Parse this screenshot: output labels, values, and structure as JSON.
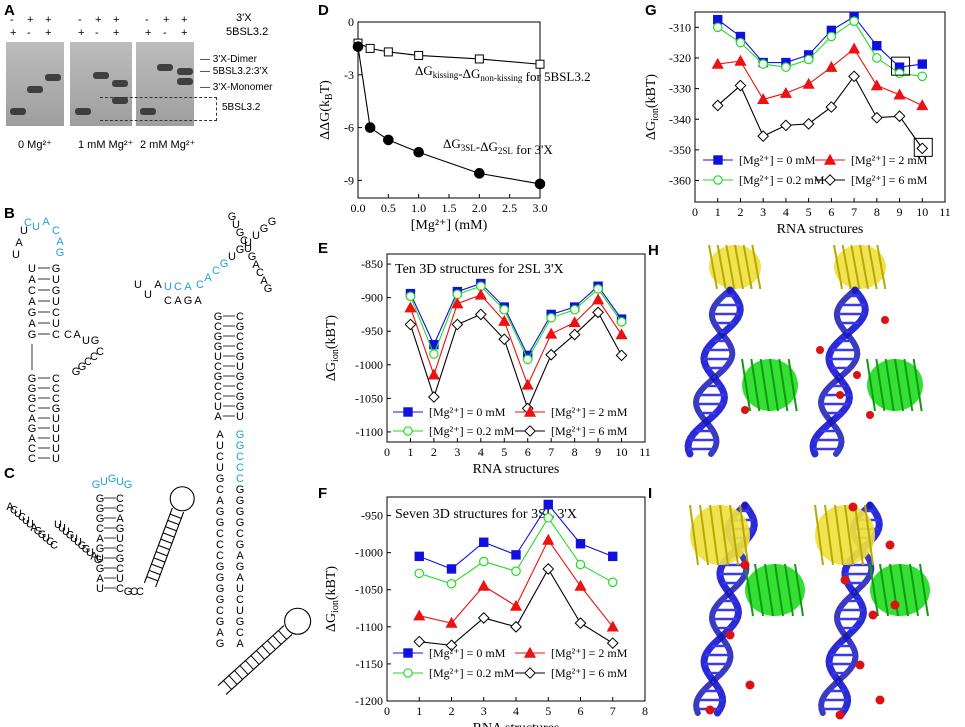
{
  "panels": {
    "A": {
      "label": "A",
      "lanes_3x": [
        "-",
        "+",
        "+",
        "-",
        "+",
        "+",
        "-",
        "+",
        "+"
      ],
      "lanes_5bsl": [
        "+",
        "-",
        "+",
        "+",
        "-",
        "+",
        "+",
        "-",
        "+"
      ],
      "row_3x": "3'X",
      "row_5bsl": "5BSL3.2",
      "bands": [
        "3'X-Dimer",
        "5BSL3.2:3'X",
        "3'X-Monomer",
        "5BSL3.2"
      ],
      "conditions": [
        "0 Mg²⁺",
        "1 mM Mg²⁺",
        "2 mM Mg²⁺"
      ]
    },
    "B": {
      "label": "B"
    },
    "C": {
      "label": "C"
    },
    "H": {
      "label": "H"
    },
    "I": {
      "label": "I"
    }
  },
  "chart_data": [
    {
      "id": "D",
      "label": "D",
      "type": "line",
      "ylabel_main": "ΔΔG(k",
      "ylabel_sub": "B",
      "ylabel_end": "T)",
      "xlabel": "[Mg²⁺] (mM)",
      "xlim": [
        0,
        3
      ],
      "ylim": [
        -10,
        0
      ],
      "xticks": [
        "0.0",
        "0.5",
        "1.0",
        "1.5",
        "2.0",
        "2.5",
        "3.0"
      ],
      "yticks": [
        "0",
        "-3",
        "-6",
        "-9"
      ],
      "series": [
        {
          "name": "ΔGkissing-ΔGnon-kissing for 5BSL3.2",
          "marker": "square-open",
          "x": [
            0,
            0.2,
            0.5,
            1,
            2,
            3
          ],
          "values": [
            -1.2,
            -1.5,
            -1.7,
            -1.9,
            -2.1,
            -2.4
          ]
        },
        {
          "name": "ΔG3SL-ΔG2SL for 3'X",
          "marker": "circle-filled",
          "x": [
            0,
            0.2,
            0.5,
            1,
            2,
            3
          ],
          "values": [
            -1.4,
            -6.0,
            -6.7,
            -7.4,
            -8.6,
            -9.2
          ]
        }
      ],
      "annotations": [
        {
          "main": "ΔG",
          "sub1": "kissing",
          "mid": "-ΔG",
          "sub2": "non-kissing",
          "tail": " for 5BSL3.2"
        },
        {
          "main": "ΔG",
          "sub1": "3SL",
          "mid": "-ΔG",
          "sub2": "2SL",
          "tail": " for 3'X"
        }
      ]
    },
    {
      "id": "E",
      "label": "E",
      "type": "line",
      "title": "Ten 3D structures for 2SL 3'X",
      "ylabel_main": "ΔG",
      "ylabel_sub": "ion",
      "ylabel_end": "(kBT)",
      "xlabel": "RNA structures",
      "xlim": [
        0,
        11
      ],
      "ylim": [
        -1115,
        -835
      ],
      "xticks": [
        "0",
        "1",
        "2",
        "3",
        "4",
        "5",
        "6",
        "7",
        "8",
        "9",
        "10",
        "11"
      ],
      "yticks": [
        "-850",
        "-900",
        "-950",
        "-1000",
        "-1050",
        "-1100"
      ],
      "x": [
        1,
        2,
        3,
        4,
        5,
        6,
        7,
        8,
        9,
        10
      ],
      "series": [
        {
          "name": "[Mg²⁺] = 0 mM",
          "color": "#1010e0",
          "marker": "square-filled",
          "values": [
            -894,
            -970,
            -891,
            -879,
            -914,
            -986,
            -925,
            -914,
            -883,
            -932
          ]
        },
        {
          "name": "[Mg²⁺] = 0.2 mM",
          "color": "#22dd22",
          "marker": "circle-open",
          "values": [
            -898,
            -984,
            -895,
            -883,
            -918,
            -992,
            -930,
            -918,
            -887,
            -936
          ]
        },
        {
          "name": "[Mg²⁺] = 2 mM",
          "color": "#ee1111",
          "marker": "triangle-filled",
          "values": [
            -915,
            -1015,
            -909,
            -896,
            -935,
            -1030,
            -954,
            -937,
            -903,
            -955
          ]
        },
        {
          "name": "[Mg²⁺] = 6 mM",
          "color": "#000000",
          "marker": "diamond-open",
          "values": [
            -940,
            -1048,
            -940,
            -925,
            -962,
            -1065,
            -985,
            -955,
            -922,
            -986
          ]
        }
      ]
    },
    {
      "id": "F",
      "label": "F",
      "type": "line",
      "title": "Seven 3D structures for 3SL 3'X",
      "ylabel_main": "ΔG",
      "ylabel_sub": "ion",
      "ylabel_end": "(kBT)",
      "xlabel": "RNA structures",
      "xlim": [
        0,
        8
      ],
      "ylim": [
        -1200,
        -925
      ],
      "xticks": [
        "0",
        "1",
        "2",
        "3",
        "4",
        "5",
        "6",
        "7",
        "8"
      ],
      "yticks": [
        "-950",
        "-1000",
        "-1050",
        "-1100",
        "-1150",
        "-1200"
      ],
      "x": [
        1,
        2,
        3,
        4,
        5,
        6,
        7
      ],
      "series": [
        {
          "name": "[Mg²⁺] = 0 mM",
          "color": "#1010e0",
          "marker": "square-filled",
          "values": [
            -1005,
            -1022,
            -986,
            -1003,
            -935,
            -988,
            -1005
          ]
        },
        {
          "name": "[Mg²⁺] = 0.2 mM",
          "color": "#22dd22",
          "marker": "circle-open",
          "values": [
            -1028,
            -1042,
            -1012,
            -1025,
            -953,
            -1016,
            -1040
          ]
        },
        {
          "name": "[Mg²⁺] = 2 mM",
          "color": "#ee1111",
          "marker": "triangle-filled",
          "values": [
            -1085,
            -1095,
            -1045,
            -1072,
            -983,
            -1045,
            -1100
          ]
        },
        {
          "name": "[Mg²⁺] = 6 mM",
          "color": "#000000",
          "marker": "diamond-open",
          "values": [
            -1120,
            -1125,
            -1088,
            -1100,
            -1022,
            -1095,
            -1122
          ]
        }
      ]
    },
    {
      "id": "G",
      "label": "G",
      "type": "line",
      "ylabel_main": "ΔG",
      "ylabel_sub": "ion",
      "ylabel_end": "(kBT)",
      "xlabel": "RNA structures",
      "xlim": [
        0,
        11
      ],
      "ylim": [
        -367,
        -305
      ],
      "xticks": [
        "0",
        "1",
        "2",
        "3",
        "4",
        "5",
        "6",
        "7",
        "8",
        "9",
        "10",
        "11"
      ],
      "yticks": [
        "-310",
        "-320",
        "-330",
        "-340",
        "-350",
        "-360"
      ],
      "x": [
        1,
        2,
        3,
        4,
        5,
        6,
        7,
        8,
        9,
        10
      ],
      "series": [
        {
          "name": "[Mg²⁺] = 0 mM",
          "color": "#1010e0",
          "marker": "square-filled",
          "values": [
            -307.5,
            -313,
            -321.5,
            -321.5,
            -319,
            -311,
            -306.5,
            -316,
            -323,
            -322
          ]
        },
        {
          "name": "[Mg²⁺] = 0.2 mM",
          "color": "#22dd22",
          "marker": "circle-open",
          "values": [
            -310,
            -315,
            -322,
            -323,
            -320.5,
            -313,
            -308,
            -320,
            -325,
            -326
          ]
        },
        {
          "name": "[Mg²⁺] = 2 mM",
          "color": "#ee1111",
          "marker": "triangle-filled",
          "values": [
            -322,
            -321,
            -333.5,
            -331.5,
            -328.5,
            -323,
            -317,
            -329,
            -332,
            -335.5
          ]
        },
        {
          "name": "[Mg²⁺] = 6 mM",
          "color": "#000000",
          "marker": "diamond-open",
          "values": [
            -335.5,
            -329,
            -345.5,
            -342,
            -341.5,
            -336,
            -326,
            -339.5,
            -339,
            -349.5
          ]
        }
      ],
      "boxes_at": [
        9,
        10
      ]
    }
  ]
}
